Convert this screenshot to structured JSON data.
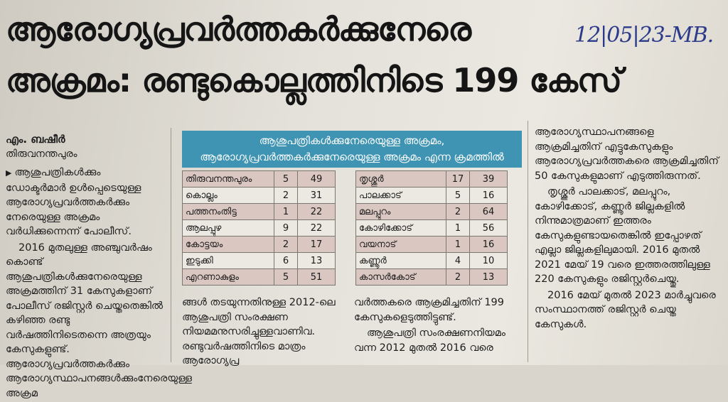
{
  "headline": {
    "line1": "ആരോഗ്യപ്രവർത്തകർക്കുനേരെ",
    "line2": "അക്രമം: രണ്ടുകൊല്ലത്തിനിടെ 199 കേസ്"
  },
  "handwritten_note": "12|05|23-MB.",
  "byline": {
    "author": "എം. ബഷീർ",
    "place": "തിരുവനന്തപുരം"
  },
  "column1": {
    "paragraphs": [
      "ആശുപത്രികൾക്കും ഡോക്ടർമാർ ഉൾപ്പെടെയുള്ള ആരോഗ്യപ്രവർത്തകർക്കും നേരെയുള്ള അക്രമം വർധിക്കുന്നെന്ന് പോലീസ്.",
      "2016 മുതലുള്ള അഞ്ചുവർഷം കൊണ്ട് ആശുപത്രികൾക്കുനേരെയുള്ള അക്രമത്തിന് 31 കേസുകളാണ് പോലീസ് രജിസ്റ്റർ ചെയ്തതെങ്കിൽ കഴിഞ്ഞ രണ്ടു വർഷത്തിനിടെതന്നെ അത്രയും കേസുകളുണ്ട്. ആരോഗ്യപ്രവർത്തകർക്കും ആരോഗ്യസ്ഥാപനങ്ങൾക്കുംനേരെയുള്ള അക്രമ"
    ]
  },
  "table": {
    "banner_line1": "ആശുപത്രികൾക്കുനേരെയുള്ള അക്രമം,",
    "banner_line2": "ആരോഗ്യപ്രവർത്തകർക്കുനേരെയുള്ള അക്രമം എന്ന ക്രമത്തിൽ",
    "left_rows": [
      {
        "district": "തിരുവനന്തപുരം",
        "a": "5",
        "b": "49"
      },
      {
        "district": "കൊല്ലം",
        "a": "2",
        "b": "31"
      },
      {
        "district": "പത്തനംതിട്ട",
        "a": "1",
        "b": "22"
      },
      {
        "district": "ആലപ്പുഴ",
        "a": "9",
        "b": "22"
      },
      {
        "district": "കോട്ടയം",
        "a": "2",
        "b": "17"
      },
      {
        "district": "ഇടുക്കി",
        "a": "6",
        "b": "13"
      },
      {
        "district": "എറണാകുളം",
        "a": "5",
        "b": "51"
      }
    ],
    "right_rows": [
      {
        "district": "തൃശ്ശൂർ",
        "a": "17",
        "b": "39"
      },
      {
        "district": "പാലക്കാട്",
        "a": "5",
        "b": "16"
      },
      {
        "district": "മലപ്പുറം",
        "a": "2",
        "b": "64"
      },
      {
        "district": "കോഴിക്കോട്",
        "a": "1",
        "b": "56"
      },
      {
        "district": "വയനാട്",
        "a": "1",
        "b": "16"
      },
      {
        "district": "കണ്ണൂർ",
        "a": "4",
        "b": "10"
      },
      {
        "district": "കാസർകോട്",
        "a": "2",
        "b": "13"
      }
    ]
  },
  "column2": {
    "text": "ങ്ങൾ തടയുന്നതിനുള്ള 2012-ലെ ആശുപത്രി സംരക്ഷണ നിയമമനുസരിച്ചുള്ളവാണിവ. രണ്ടുവർഷത്തിനിടെ മാത്രം ആരോഗ്യപ്ര"
  },
  "column2b": {
    "p1": "വർത്തകരെ ആക്രമിച്ചതിന് 199 കേസുകളെടുത്തിട്ടുണ്ട്.",
    "p2": "ആശുപത്രി സംരക്ഷണനിയമം വന്ന 2012 മുതൽ 2016 വരെ"
  },
  "column3": {
    "paragraphs": [
      "ആരോഗ്യസ്ഥാപനങ്ങളെ ആക്രമിച്ചതിന് എട്ടുകേസുകളും ആരോഗ്യപ്രവർത്തകരെ ആക്രമിച്ചതിന് 50 കേസുകളുമാണ് എടുത്തിരുന്നത്.",
      "തൃശ്ശൂർ പാലക്കാട്, മലപ്പുറം, കോഴിക്കോട്, കണ്ണൂർ ജില്ലകളിൽ നിന്നുമാത്രമാണ് ഇത്തരം കേസുകളുണ്ടായതെങ്കിൽ ഇപ്പോഴത് എല്ലാ ജില്ലകളിലുമായി. 2016 മുതൽ 2021 മേയ് 19 വരെ ഇത്തരത്തിലുള്ള 220 കേസുകളും രജിസ്റ്റർചെയ്തു.",
      "2016 മേയ് മുതൽ 2023 മാർച്ചുവരെ സംസ്ഥാനത്ത് രജിസ്റ്റർ ചെയ്ത കേസുകൾ."
    ]
  }
}
